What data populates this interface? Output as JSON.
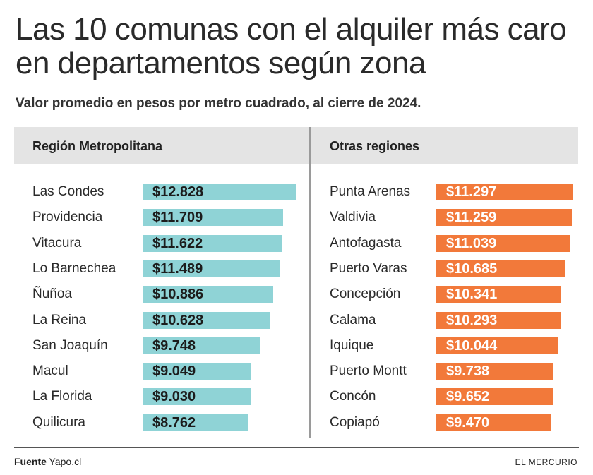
{
  "chart_data": {
    "type": "bar",
    "orientation": "horizontal",
    "title": "Las 10 comunas con el alquiler más caro en departamentos según zona",
    "subtitle": "Valor promedio en pesos por metro cuadrado, al cierre de 2024.",
    "panels": [
      {
        "name": "Región Metropolitana",
        "color": "#8fd3d6",
        "categories": [
          "Las Condes",
          "Providencia",
          "Vitacura",
          "Lo Barnechea",
          "Ñuñoa",
          "La Reina",
          "San Joaquín",
          "Macul",
          "La Florida",
          "Quilicura"
        ],
        "values": [
          12828,
          11709,
          11622,
          11489,
          10886,
          10628,
          9748,
          9049,
          9030,
          8762
        ],
        "labels": [
          "$12.828",
          "$11.709",
          "$11.622",
          "$11.489",
          "$10.886",
          "$10.628",
          "$9.748",
          "$9.049",
          "$9.030",
          "$8.762"
        ]
      },
      {
        "name": "Otras regiones",
        "color": "#f2793a",
        "categories": [
          "Punta Arenas",
          "Valdivia",
          "Antofagasta",
          "Puerto Varas",
          "Concepción",
          "Calama",
          "Iquique",
          "Puerto Montt",
          "Concón",
          "Copiapó"
        ],
        "values": [
          11297,
          11259,
          11039,
          10685,
          10341,
          10293,
          10044,
          9738,
          9652,
          9470
        ],
        "labels": [
          "$11.297",
          "$11.259",
          "$11.039",
          "$10.685",
          "$10.341",
          "$10.293",
          "$10.044",
          "$9.738",
          "$9.652",
          "$9.470"
        ]
      }
    ]
  },
  "footer": {
    "source_label": "Fuente",
    "source_value": "Yapo.cl",
    "brand": "EL MERCURIO"
  }
}
